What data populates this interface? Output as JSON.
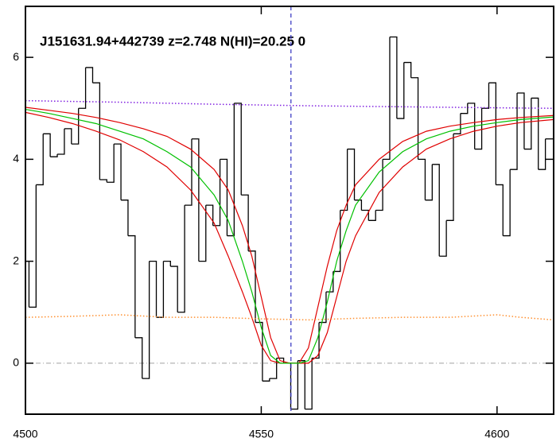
{
  "chart_data": {
    "type": "line",
    "title": "J151631.94+442739 z=2.748 N(HI)=20.25 0",
    "xlim": [
      4500,
      4612
    ],
    "ylim": [
      -1,
      7
    ],
    "xticks": [
      4500,
      4550,
      4600
    ],
    "yticks": [
      0,
      2,
      4,
      6
    ],
    "vline": 4556.3,
    "vline_color": "#3030c0",
    "hline": 0,
    "hline_color": "#a0a0a0",
    "series": [
      {
        "style": "steps",
        "color": "#000000",
        "x": [
          4500,
          4501.5,
          4503,
          4504.5,
          4506,
          4507.5,
          4509,
          4510.5,
          4512,
          4513.5,
          4515,
          4516.5,
          4518,
          4519.5,
          4521,
          4522.5,
          4524,
          4525.5,
          4527,
          4528.5,
          4530,
          4531.5,
          4533,
          4534.5,
          4536,
          4537.5,
          4539,
          4540.5,
          4542,
          4543.5,
          4545,
          4546.5,
          4548,
          4549.5,
          4551,
          4552.5,
          4554,
          4555.5,
          4557,
          4558.5,
          4560,
          4561.5,
          4563,
          4564.5,
          4566,
          4567.5,
          4569,
          4570.5,
          4572,
          4573.5,
          4575,
          4576.5,
          4578,
          4579.5,
          4581,
          4582.5,
          4584,
          4585.5,
          4587,
          4588.5,
          4590,
          4591.5,
          4593,
          4594.5,
          4596,
          4597.5,
          4599,
          4600.5,
          4602,
          4603.5,
          4605,
          4606.5,
          4608,
          4609.5,
          4611
        ],
        "values": [
          2.0,
          1.1,
          3.5,
          4.5,
          4.05,
          4.1,
          4.6,
          4.3,
          5.0,
          5.8,
          5.5,
          3.6,
          3.55,
          4.3,
          3.2,
          2.5,
          0.5,
          -0.3,
          2.0,
          0.9,
          2.0,
          1.9,
          1.0,
          3.1,
          4.4,
          2.0,
          3.1,
          2.7,
          4.0,
          2.5,
          5.1,
          3.3,
          2.2,
          0.8,
          -0.35,
          -0.3,
          0.1,
          0.0,
          -0.9,
          0.05,
          -0.9,
          0.1,
          0.8,
          1.4,
          1.8,
          3.0,
          4.2,
          3.2,
          3.0,
          2.8,
          3.0,
          4.0,
          6.4,
          4.8,
          5.9,
          5.6,
          4.0,
          3.2,
          3.9,
          2.1,
          2.8,
          4.5,
          4.9,
          5.1,
          4.2,
          5.0,
          5.5,
          3.5,
          2.5,
          3.8,
          5.3,
          4.2,
          5.2,
          3.8,
          4.4
        ]
      },
      {
        "style": "solid",
        "color": "#e00000",
        "x": [
          4500,
          4505,
          4510,
          4515,
          4520,
          4525,
          4530,
          4535,
          4540,
          4543,
          4546,
          4548,
          4550,
          4552,
          4554,
          4556,
          4558,
          4560,
          4562,
          4564,
          4566,
          4568,
          4570,
          4575,
          4580,
          4585,
          4590,
          4595,
          4600,
          4605,
          4612
        ],
        "values": [
          5.02,
          4.96,
          4.9,
          4.82,
          4.72,
          4.6,
          4.45,
          4.2,
          3.8,
          3.4,
          2.7,
          2.1,
          1.3,
          0.5,
          0.05,
          0,
          0,
          0.3,
          1.1,
          1.9,
          2.6,
          3.1,
          3.5,
          4.0,
          4.35,
          4.55,
          4.65,
          4.72,
          4.78,
          4.82,
          4.86
        ]
      },
      {
        "style": "solid",
        "color": "#e00000",
        "x": [
          4500,
          4505,
          4510,
          4515,
          4520,
          4525,
          4530,
          4535,
          4540,
          4543,
          4546,
          4548,
          4550,
          4552,
          4554,
          4556,
          4558,
          4560,
          4562,
          4564,
          4566,
          4568,
          4570,
          4575,
          4580,
          4585,
          4590,
          4595,
          4600,
          4605,
          4612
        ],
        "values": [
          4.92,
          4.82,
          4.7,
          4.55,
          4.38,
          4.15,
          3.85,
          3.4,
          2.75,
          2.1,
          1.4,
          0.9,
          0.35,
          0.05,
          0,
          0,
          0,
          0,
          0.15,
          0.6,
          1.3,
          2.0,
          2.5,
          3.35,
          3.85,
          4.2,
          4.4,
          4.55,
          4.65,
          4.72,
          4.78
        ]
      },
      {
        "style": "solid",
        "color": "#00c000",
        "x": [
          4500,
          4505,
          4510,
          4515,
          4520,
          4525,
          4530,
          4535,
          4540,
          4543,
          4546,
          4548,
          4550,
          4552,
          4554,
          4556,
          4558,
          4560,
          4562,
          4564,
          4566,
          4568,
          4570,
          4575,
          4580,
          4585,
          4590,
          4595,
          4600,
          4605,
          4612
        ],
        "values": [
          4.98,
          4.9,
          4.8,
          4.7,
          4.55,
          4.4,
          4.15,
          3.85,
          3.3,
          2.8,
          2.0,
          1.4,
          0.7,
          0.15,
          0,
          0,
          0,
          0.05,
          0.5,
          1.2,
          2.0,
          2.6,
          3.1,
          3.75,
          4.15,
          4.4,
          4.55,
          4.65,
          4.72,
          4.78,
          4.83
        ]
      },
      {
        "style": "dotted",
        "color": "#8020e0",
        "x": [
          4500,
          4520,
          4540,
          4560,
          4580,
          4600,
          4612
        ],
        "values": [
          5.15,
          5.12,
          5.08,
          5.05,
          5.03,
          5.01,
          5.0
        ]
      },
      {
        "style": "dotted",
        "color": "#ff9030",
        "x": [
          4500,
          4510,
          4520,
          4530,
          4540,
          4550,
          4560,
          4570,
          4580,
          4590,
          4600,
          4605,
          4612
        ],
        "values": [
          0.9,
          0.92,
          0.95,
          0.9,
          0.9,
          0.87,
          0.85,
          0.88,
          0.9,
          0.9,
          0.95,
          0.9,
          0.85
        ]
      }
    ]
  }
}
